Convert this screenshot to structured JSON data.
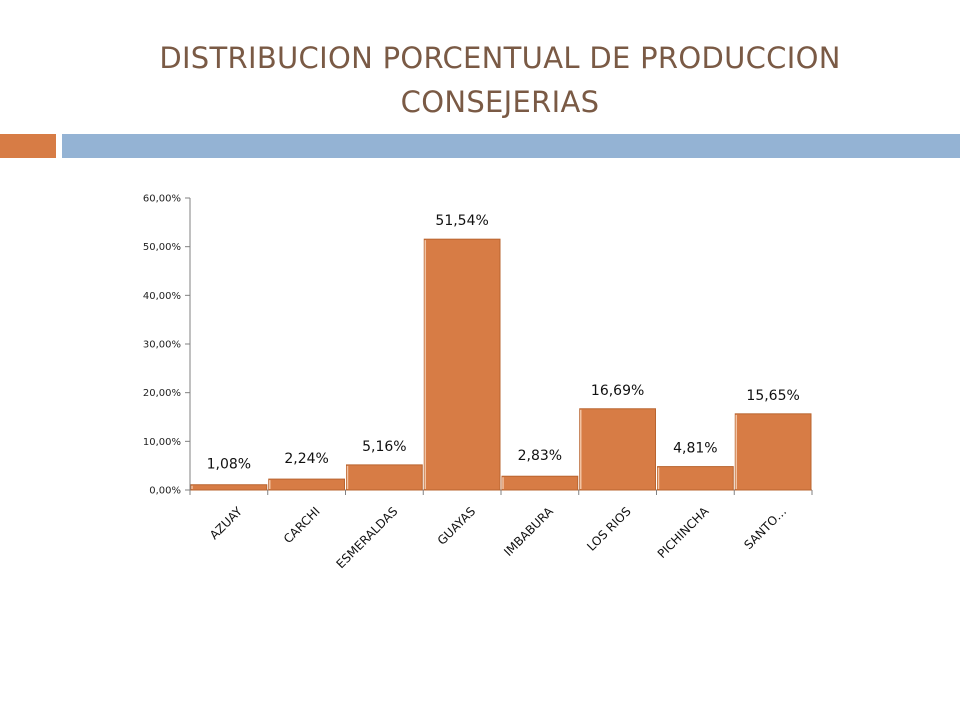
{
  "slide": {
    "title_line1": "DISTRIBUCION PORCENTUAL DE PRODUCCION",
    "title_line2": "CONSEJERIAS"
  },
  "colors": {
    "title": "#7a5a45",
    "accent": "#d77c45",
    "rule": "#94b3d4",
    "bar": "#d77c45",
    "bar_edge": "#b9642f",
    "axis": "#808080"
  },
  "chart_data": {
    "type": "bar",
    "categories": [
      "AZUAY",
      "CARCHI",
      "ESMERALDAS",
      "GUAYAS",
      "IMBABURA",
      "LOS RIOS",
      "PICHINCHA",
      "SANTO…"
    ],
    "values": [
      1.08,
      2.24,
      5.16,
      51.54,
      2.83,
      16.69,
      4.81,
      15.65
    ],
    "data_labels": [
      "1,08%",
      "2,24%",
      "5,16%",
      "51,54%",
      "2,83%",
      "16,69%",
      "4,81%",
      "15,65%"
    ],
    "y_ticks": [
      0,
      10,
      20,
      30,
      40,
      50,
      60
    ],
    "y_tick_labels": [
      "0,00%",
      "10,00%",
      "20,00%",
      "30,00%",
      "40,00%",
      "50,00%",
      "60,00%"
    ],
    "ylim": [
      0,
      60
    ],
    "grid": false,
    "legend": "none"
  }
}
